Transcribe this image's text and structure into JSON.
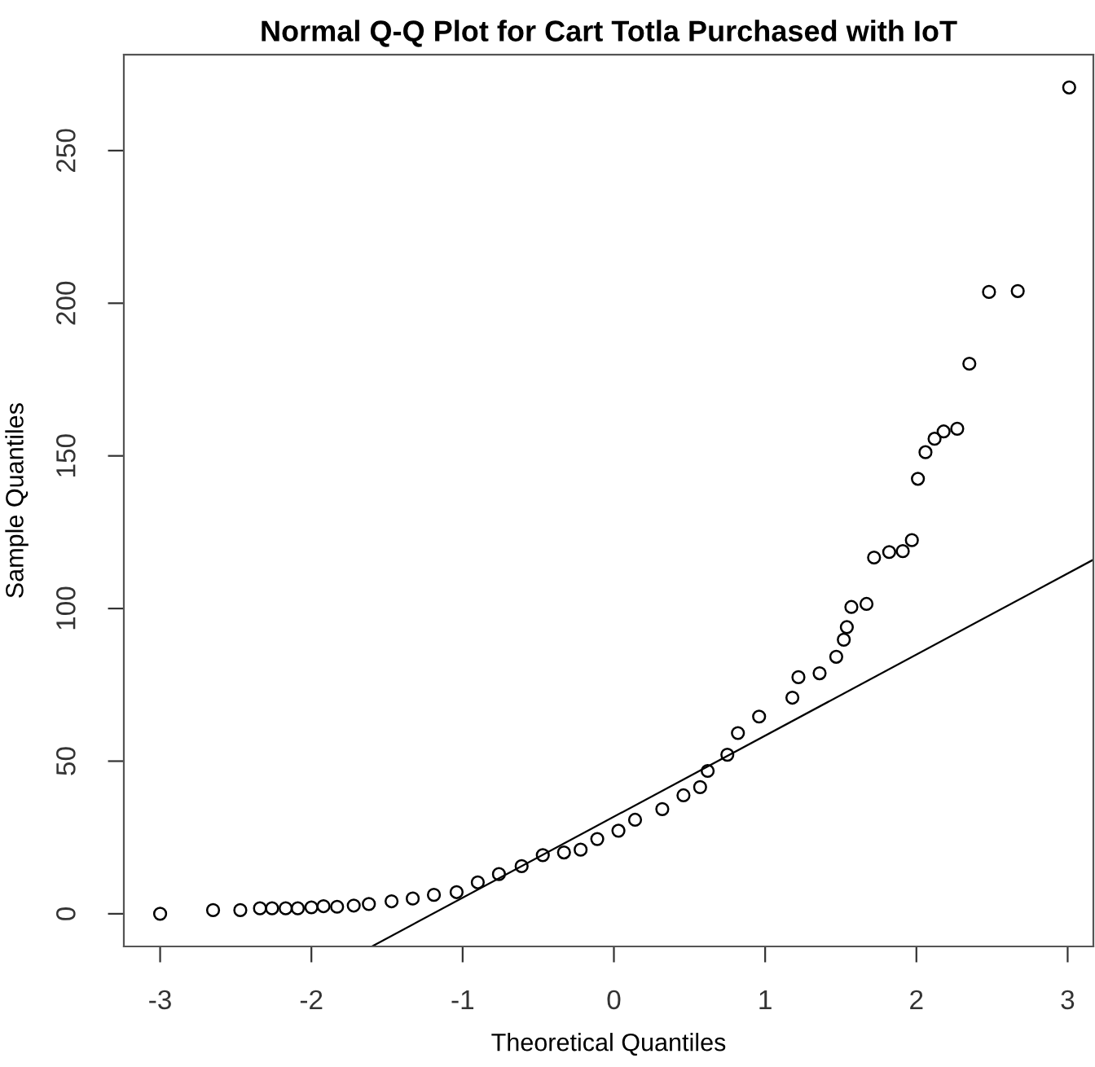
{
  "chart_data": {
    "type": "scatter",
    "title": "Normal Q-Q Plot for Cart Totla Purchased with IoT",
    "xlabel": "Theoretical Quantiles",
    "ylabel": "Sample Quantiles",
    "xlim": [
      -3.24,
      3.17
    ],
    "ylim": [
      -10.7,
      281.4
    ],
    "xticks": [
      -3,
      -2,
      -1,
      0,
      1,
      2,
      3
    ],
    "yticks": [
      0,
      50,
      100,
      150,
      200,
      250
    ],
    "grid": false,
    "legend": false,
    "series": [
      {
        "color": "#000000",
        "marker": "circle",
        "x": [
          -3.0,
          -2.65,
          -2.47,
          -2.34,
          -2.26,
          -2.17,
          -2.09,
          -2.0,
          -1.92,
          -1.83,
          -1.72,
          -1.62,
          -1.47,
          -1.33,
          -1.19,
          -1.04,
          -0.9,
          -0.76,
          -0.61,
          -0.47,
          -0.33,
          -0.22,
          -0.11,
          0.03,
          0.14,
          0.32,
          0.46,
          0.57,
          0.62,
          0.75,
          0.82,
          0.96,
          1.18,
          1.22,
          1.36,
          1.47,
          1.52,
          1.54,
          1.57,
          1.67,
          1.72,
          1.82,
          1.91,
          1.97,
          2.01,
          2.06,
          2.12,
          2.18,
          2.27,
          2.35,
          2.48,
          2.67,
          3.01
        ],
        "values": [
          0,
          1.2,
          1.2,
          1.8,
          1.8,
          1.8,
          1.8,
          2.1,
          2.5,
          2.3,
          2.7,
          3.2,
          4.1,
          5,
          6.2,
          7.1,
          10.3,
          13,
          15.6,
          19.2,
          20.1,
          21,
          24.5,
          27.2,
          30.8,
          34.3,
          38.8,
          41.5,
          46.8,
          52.1,
          59.2,
          64.6,
          70.8,
          77.5,
          78.8,
          84.2,
          89.8,
          93.9,
          100.5,
          101.5,
          116.7,
          118.5,
          118.8,
          122.4,
          142.5,
          151.2,
          155.6,
          158,
          158.9,
          180.2,
          203.7,
          204,
          270.7
        ]
      },
      {
        "type": "line",
        "color": "#000000",
        "marker": "none",
        "line_style": "solid",
        "x": [
          -1.6,
          3.17
        ],
        "values": [
          -10.7,
          116
        ]
      }
    ]
  }
}
